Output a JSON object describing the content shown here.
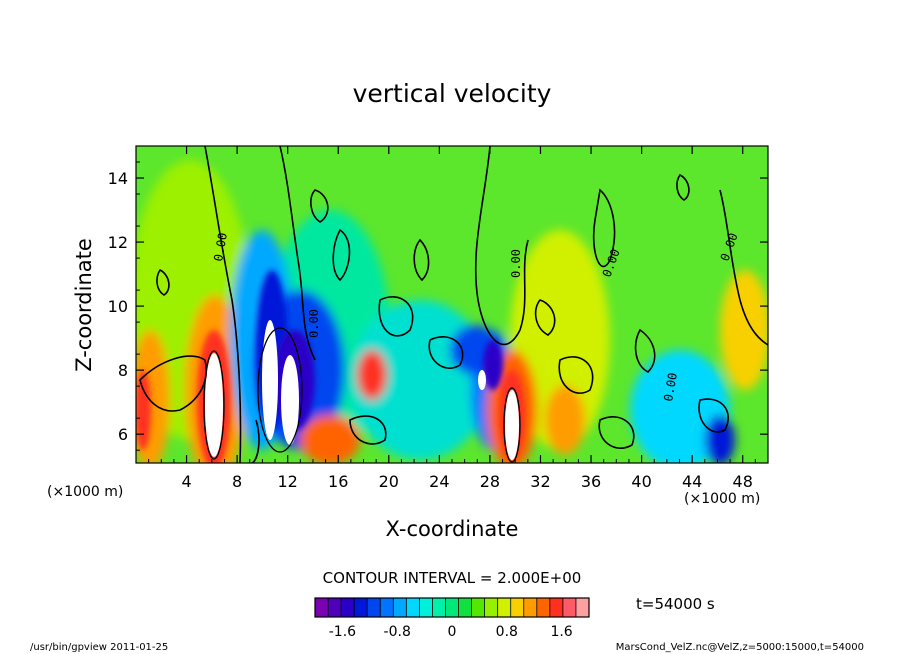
{
  "chart_data": {
    "type": "heatmap",
    "title": "vertical velocity",
    "xlabel": "X-coordinate",
    "ylabel": "Z-coordinate",
    "x_unit": "(×1000 m)",
    "y_unit": "",
    "xlim": [
      0,
      50
    ],
    "ylim": [
      5.1,
      15.0
    ],
    "x_ticks": [
      4,
      8,
      12,
      16,
      20,
      24,
      28,
      32,
      36,
      40,
      44,
      48
    ],
    "y_ticks": [
      6,
      8,
      10,
      12,
      14
    ],
    "contour_interval_text": "CONTOUR INTERVAL = 2.000E+00",
    "contour_labels": [
      "0.00",
      "0.00",
      "0.00",
      "0.00",
      "0.00",
      "0.00"
    ],
    "colorbar": {
      "levels": [
        -2.0,
        -1.8,
        -1.6,
        -1.4,
        -1.2,
        -1.0,
        -0.8,
        -0.6,
        -0.4,
        -0.2,
        0.0,
        0.2,
        0.4,
        0.6,
        0.8,
        1.0,
        1.2,
        1.4,
        1.6,
        1.8,
        2.0
      ],
      "tick_labels": [
        "-1.6",
        "-0.8",
        "0",
        "0.8",
        "1.6"
      ],
      "colors": [
        "#7a00b4",
        "#4e00b8",
        "#2a00c8",
        "#0018d8",
        "#0046f0",
        "#0074ff",
        "#00a8ff",
        "#00d8ff",
        "#00f0dc",
        "#00f0a8",
        "#00e878",
        "#10e040",
        "#54e800",
        "#98f000",
        "#d0f000",
        "#f8d000",
        "#ff9c00",
        "#ff6400",
        "#ff3020",
        "#ff5a68",
        "#ffa0a0"
      ]
    },
    "features": [
      {
        "kind": "updraft",
        "x": 6.5,
        "z_range": [
          5.1,
          9.3
        ],
        "max": "> 2.0"
      },
      {
        "kind": "updraft",
        "x": 29.5,
        "z_range": [
          5.1,
          8.3
        ],
        "max": "> 2.0"
      },
      {
        "kind": "downdraft",
        "x": 11.5,
        "z_range": [
          5.1,
          11.2
        ],
        "min": "< -2.0"
      },
      {
        "kind": "downdraft",
        "x": 27.0,
        "z_range": [
          6.8,
          8.4
        ],
        "min": "< -2.0"
      }
    ],
    "time_label": "t=54000 s"
  },
  "footer": {
    "left": "/usr/bin/gpview   2011-01-25",
    "right": "MarsCond_VelZ.nc@VelZ,z=5000:15000,t=54000"
  }
}
